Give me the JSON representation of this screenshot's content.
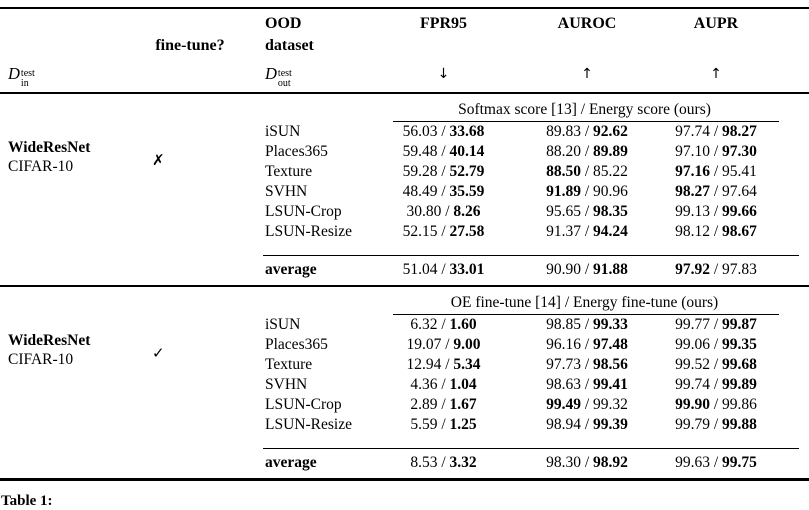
{
  "page": {
    "background": "#ffffff",
    "text_color": "#000000"
  },
  "header": {
    "in_symbol": {
      "base": "D",
      "sup": "test",
      "sub": "in"
    },
    "finetune_label": "fine-tune?",
    "ood_line1": "OOD",
    "ood_line2": "dataset",
    "out_symbol": {
      "base": "D",
      "sup": "test",
      "sub": "out"
    },
    "metrics": [
      {
        "label": "FPR95",
        "arrow": "↓"
      },
      {
        "label": "AUROC",
        "arrow": "↑"
      },
      {
        "label": "AUPR",
        "arrow": "↑"
      }
    ]
  },
  "blocks": [
    {
      "model_line1": "WideResNet",
      "model_line2": "CIFAR-10",
      "finetune_mark": "✗",
      "span_header": "Softmax score [13] / Energy score (ours)",
      "rows": [
        {
          "dataset": "iSUN",
          "cells": [
            {
              "a": "56.03",
              "b": "33.68",
              "bold": "b"
            },
            {
              "a": "89.83",
              "b": "92.62",
              "bold": "b"
            },
            {
              "a": "97.74",
              "b": "98.27",
              "bold": "b"
            }
          ]
        },
        {
          "dataset": "Places365",
          "cells": [
            {
              "a": "59.48",
              "b": "40.14",
              "bold": "b"
            },
            {
              "a": "88.20",
              "b": "89.89",
              "bold": "b"
            },
            {
              "a": "97.10",
              "b": "97.30",
              "bold": "b"
            }
          ]
        },
        {
          "dataset": "Texture",
          "cells": [
            {
              "a": "59.28",
              "b": "52.79",
              "bold": "b"
            },
            {
              "a": "88.50",
              "b": "85.22",
              "bold": "a"
            },
            {
              "a": "97.16",
              "b": "95.41",
              "bold": "a"
            }
          ]
        },
        {
          "dataset": "SVHN",
          "cells": [
            {
              "a": "48.49",
              "b": "35.59",
              "bold": "b"
            },
            {
              "a": "91.89",
              "b": "90.96",
              "bold": "a"
            },
            {
              "a": "98.27",
              "b": "97.64",
              "bold": "a"
            }
          ]
        },
        {
          "dataset": "LSUN-Crop",
          "cells": [
            {
              "a": "30.80",
              "b": "8.26",
              "bold": "b"
            },
            {
              "a": "95.65",
              "b": "98.35",
              "bold": "b"
            },
            {
              "a": "99.13",
              "b": "99.66",
              "bold": "b"
            }
          ]
        },
        {
          "dataset": "LSUN-Resize",
          "cells": [
            {
              "a": "52.15",
              "b": "27.58",
              "bold": "b"
            },
            {
              "a": "91.37",
              "b": "94.24",
              "bold": "b"
            },
            {
              "a": "98.12",
              "b": "98.67",
              "bold": "b"
            }
          ]
        }
      ],
      "average": {
        "label": "average",
        "cells": [
          {
            "a": "51.04",
            "b": "33.01",
            "bold": "b"
          },
          {
            "a": "90.90",
            "b": "91.88",
            "bold": "b"
          },
          {
            "a": "97.92",
            "b": "97.83",
            "bold": "a"
          }
        ]
      }
    },
    {
      "model_line1": "WideResNet",
      "model_line2": "CIFAR-10",
      "finetune_mark": "✓",
      "span_header": "OE fine-tune [14] / Energy fine-tune (ours)",
      "rows": [
        {
          "dataset": "iSUN",
          "cells": [
            {
              "a": "6.32",
              "b": "1.60",
              "bold": "b"
            },
            {
              "a": "98.85",
              "b": "99.33",
              "bold": "b"
            },
            {
              "a": "99.77",
              "b": "99.87",
              "bold": "b"
            }
          ]
        },
        {
          "dataset": "Places365",
          "cells": [
            {
              "a": "19.07",
              "b": "9.00",
              "bold": "b"
            },
            {
              "a": "96.16",
              "b": "97.48",
              "bold": "b"
            },
            {
              "a": "99.06",
              "b": "99.35",
              "bold": "b"
            }
          ]
        },
        {
          "dataset": "Texture",
          "cells": [
            {
              "a": "12.94",
              "b": "5.34",
              "bold": "b"
            },
            {
              "a": "97.73",
              "b": "98.56",
              "bold": "b"
            },
            {
              "a": "99.52",
              "b": "99.68",
              "bold": "b"
            }
          ]
        },
        {
          "dataset": "SVHN",
          "cells": [
            {
              "a": "4.36",
              "b": "1.04",
              "bold": "b"
            },
            {
              "a": "98.63",
              "b": "99.41",
              "bold": "b"
            },
            {
              "a": "99.74",
              "b": "99.89",
              "bold": "b"
            }
          ]
        },
        {
          "dataset": "LSUN-Crop",
          "cells": [
            {
              "a": "2.89",
              "b": "1.67",
              "bold": "b"
            },
            {
              "a": "99.49",
              "b": "99.32",
              "bold": "a"
            },
            {
              "a": "99.90",
              "b": "99.86",
              "bold": "a"
            }
          ]
        },
        {
          "dataset": "LSUN-Resize",
          "cells": [
            {
              "a": "5.59",
              "b": "1.25",
              "bold": "b"
            },
            {
              "a": "98.94",
              "b": "99.39",
              "bold": "b"
            },
            {
              "a": "99.79",
              "b": "99.88",
              "bold": "b"
            }
          ]
        }
      ],
      "average": {
        "label": "average",
        "cells": [
          {
            "a": "8.53",
            "b": "3.32",
            "bold": "b"
          },
          {
            "a": "98.30",
            "b": "98.92",
            "bold": "b"
          },
          {
            "a": "99.63",
            "b": "99.75",
            "bold": "b"
          }
        ]
      }
    }
  ],
  "caption_fragment": "Table 1:"
}
